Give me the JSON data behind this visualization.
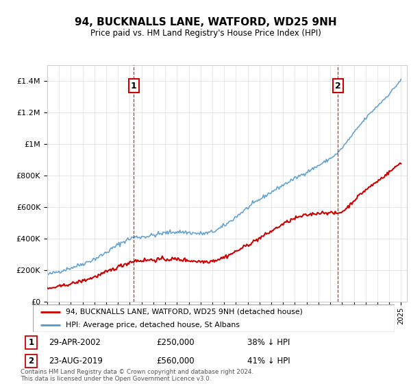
{
  "title": "94, BUCKNALLS LANE, WATFORD, WD25 9NH",
  "subtitle": "Price paid vs. HM Land Registry's House Price Index (HPI)",
  "footnote": "Contains HM Land Registry data © Crown copyright and database right 2024.\nThis data is licensed under the Open Government Licence v3.0.",
  "legend_line1": "94, BUCKNALLS LANE, WATFORD, WD25 9NH (detached house)",
  "legend_line2": "HPI: Average price, detached house, St Albans",
  "transaction1_date": "29-APR-2002",
  "transaction1_price": "£250,000",
  "transaction1_hpi": "38% ↓ HPI",
  "transaction1_year": 2002.33,
  "transaction2_date": "23-AUG-2019",
  "transaction2_price": "£560,000",
  "transaction2_hpi": "41% ↓ HPI",
  "transaction2_year": 2019.64,
  "red_color": "#cc0000",
  "blue_color": "#5599cc",
  "ylim_min": 0,
  "ylim_max": 1500000,
  "xlim_min": 1995,
  "xlim_max": 2025.5
}
